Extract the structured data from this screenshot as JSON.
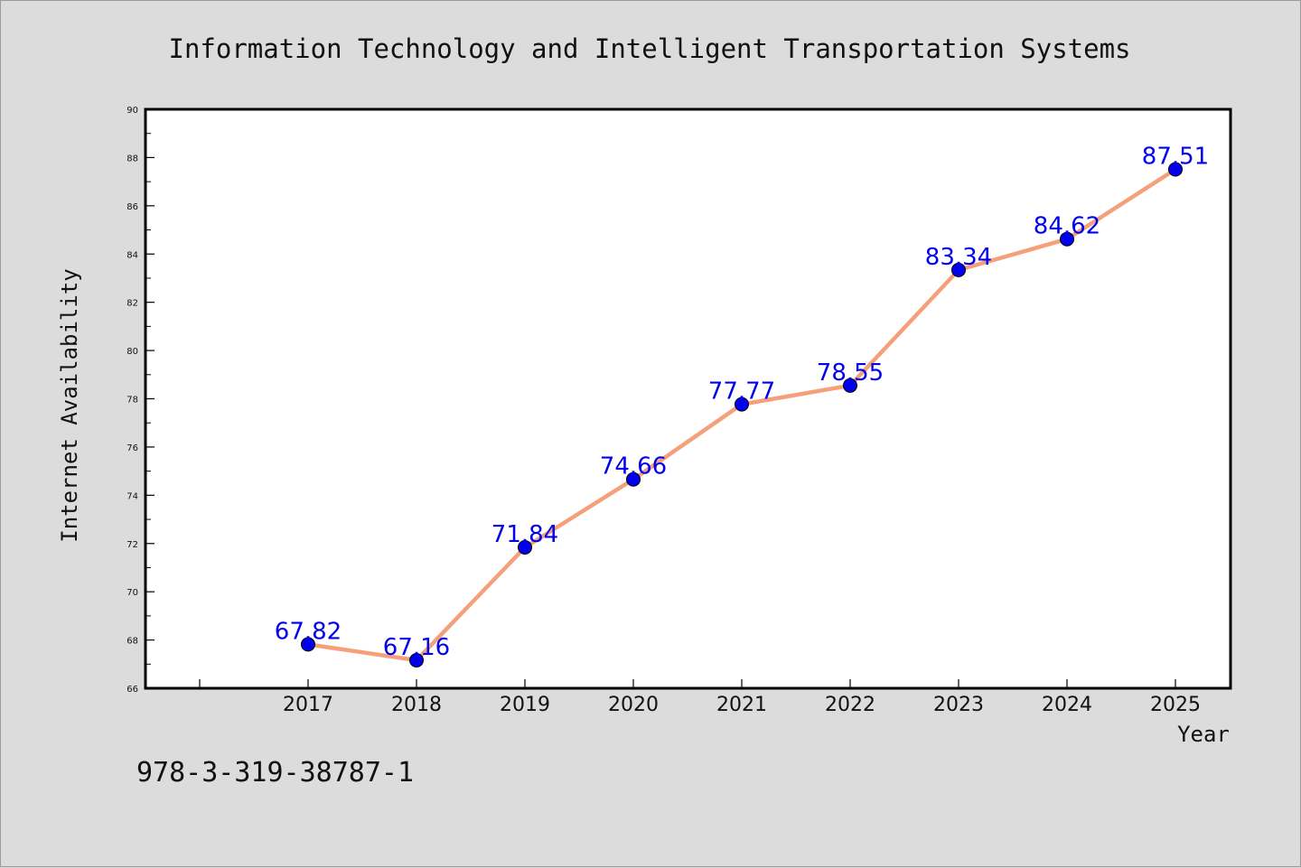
{
  "chart_data": {
    "type": "line",
    "title": "Information Technology and Intelligent Transportation Systems",
    "xlabel": "Year",
    "ylabel": "Internet Availability",
    "categories": [
      "2017",
      "2018",
      "2019",
      "2020",
      "2021",
      "2022",
      "2023",
      "2024",
      "2025"
    ],
    "series": [
      {
        "values": [
          67.82,
          67.16,
          71.84,
          74.66,
          77.77,
          78.55,
          83.34,
          84.62,
          87.51
        ]
      }
    ],
    "data_labels": [
      "67.82",
      "67.16",
      "71.84",
      "74.66",
      "77.77",
      "78.55",
      "83.34",
      "84.62",
      "87.51"
    ],
    "ylim": [
      66,
      90
    ],
    "yticks": [
      "66",
      "68",
      "70",
      "72",
      "74",
      "76",
      "78",
      "80",
      "82",
      "84",
      "86",
      "88",
      "90"
    ],
    "grid": false,
    "legend": "none",
    "line_color": "#f5a07a",
    "marker_color": "#0000ee",
    "label_color": "#0000ee"
  },
  "footer_text": "978-3-319-38787-1"
}
